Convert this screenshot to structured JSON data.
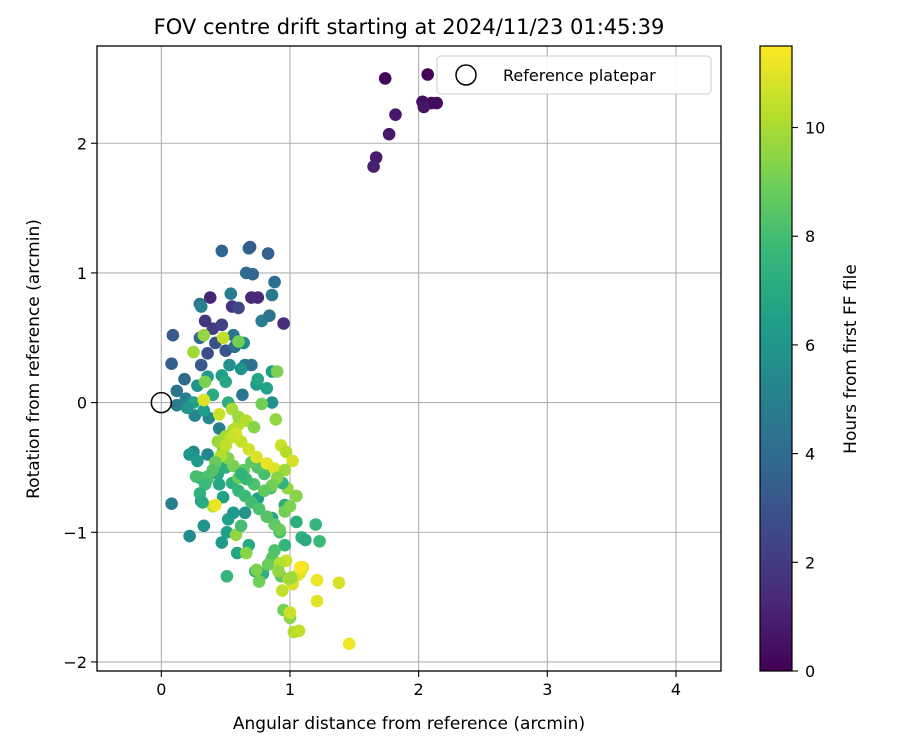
{
  "chart_data": {
    "type": "scatter",
    "title": "FOV centre drift starting at 2024/11/23 01:45:39",
    "xlabel": "Angular distance from reference (arcmin)",
    "ylabel": "Rotation from reference (arcmin)",
    "xlim": [
      -0.5,
      4.35
    ],
    "ylim": [
      -2.07,
      2.75
    ],
    "xticks": [
      0,
      1,
      2,
      3,
      4
    ],
    "yticks": [
      -2,
      -1,
      0,
      1,
      2
    ],
    "grid": true,
    "legend": {
      "position": "top-right",
      "entries": [
        "Reference platepar"
      ]
    },
    "reference_point": {
      "x": 0,
      "y": 0,
      "marker": "open-circle"
    },
    "colorbar": {
      "label": "Hours from first FF file",
      "colormap": "viridis",
      "range": [
        0,
        11.5
      ],
      "ticks": [
        0,
        2,
        4,
        6,
        8,
        10
      ]
    },
    "colormap_stops": [
      "#440154",
      "#482878",
      "#3e4989",
      "#31688e",
      "#26828e",
      "#1f9e89",
      "#35b779",
      "#6ece58",
      "#b5de2b",
      "#fde725"
    ],
    "series": [
      {
        "points": [
          [
            2.07,
            2.53,
            0.1
          ],
          [
            1.74,
            2.5,
            0.2
          ],
          [
            2.1,
            2.31,
            0.3
          ],
          [
            2.14,
            2.31,
            0.4
          ],
          [
            2.03,
            2.32,
            0.5
          ],
          [
            2.04,
            2.28,
            0.6
          ],
          [
            1.82,
            2.22,
            0.7
          ],
          [
            1.77,
            2.07,
            0.8
          ],
          [
            1.67,
            1.89,
            0.9
          ],
          [
            1.65,
            1.82,
            1.0
          ],
          [
            0.38,
            0.81,
            1.2
          ],
          [
            0.7,
            0.81,
            1.3
          ],
          [
            0.75,
            0.81,
            1.4
          ],
          [
            0.95,
            0.61,
            1.5
          ],
          [
            0.55,
            0.74,
            1.7
          ],
          [
            0.34,
            0.63,
            1.9
          ],
          [
            0.4,
            0.57,
            2.1
          ],
          [
            0.47,
            0.6,
            2.3
          ],
          [
            0.6,
            0.73,
            2.5
          ],
          [
            0.36,
            0.38,
            2.7
          ],
          [
            0.42,
            0.46,
            2.9
          ],
          [
            0.5,
            0.4,
            3.1
          ],
          [
            0.31,
            0.29,
            3.3
          ],
          [
            0.83,
            1.15,
            3.5
          ],
          [
            0.47,
            1.17,
            3.7
          ],
          [
            0.68,
            1.19,
            3.9
          ],
          [
            0.66,
            1.0,
            4.1
          ],
          [
            0.3,
            0.76,
            4.3
          ],
          [
            0.56,
            0.52,
            4.5
          ],
          [
            0.65,
            0.29,
            4.7
          ],
          [
            0.09,
            0.52,
            3.2
          ],
          [
            0.08,
            0.3,
            3.6
          ],
          [
            0.18,
            0.18,
            4.0
          ],
          [
            0.12,
            0.09,
            4.4
          ],
          [
            0.12,
            -0.02,
            4.8
          ],
          [
            0.26,
            -0.1,
            5.2
          ],
          [
            0.37,
            -0.12,
            5.4
          ],
          [
            0.45,
            -0.2,
            5.0
          ],
          [
            0.25,
            -0.38,
            5.6
          ],
          [
            0.36,
            -0.4,
            5.3
          ],
          [
            0.69,
            1.2,
            3.4
          ],
          [
            0.71,
            0.99,
            3.8
          ],
          [
            0.88,
            0.93,
            4.2
          ],
          [
            0.86,
            0.83,
            4.6
          ],
          [
            0.78,
            0.63,
            5.0
          ],
          [
            0.84,
            0.67,
            4.4
          ],
          [
            0.54,
            0.84,
            4.9
          ],
          [
            0.31,
            0.74,
            5.1
          ],
          [
            0.64,
            0.46,
            5.5
          ],
          [
            0.53,
            0.29,
            5.7
          ],
          [
            0.7,
            0.29,
            4.3
          ],
          [
            0.62,
            0.26,
            5.9
          ],
          [
            0.3,
            0.5,
            3.9
          ],
          [
            0.57,
            0.43,
            4.1
          ],
          [
            0.63,
            0.06,
            4.5
          ],
          [
            0.74,
            0.14,
            6.2
          ],
          [
            0.86,
            0.24,
            6.4
          ],
          [
            0.82,
            0.11,
            6.6
          ],
          [
            0.75,
            0.18,
            6.8
          ],
          [
            0.86,
            0.0,
            5.8
          ],
          [
            0.19,
            0.03,
            5.0
          ],
          [
            0.28,
            0.13,
            6.0
          ],
          [
            0.36,
            0.2,
            6.2
          ],
          [
            0.47,
            0.21,
            6.4
          ],
          [
            0.5,
            0.16,
            6.8
          ],
          [
            0.4,
            0.06,
            7.0
          ],
          [
            0.25,
            0.0,
            6.6
          ],
          [
            0.33,
            -0.06,
            6.4
          ],
          [
            0.2,
            -0.04,
            6.0
          ],
          [
            0.52,
            0.0,
            7.2
          ],
          [
            0.08,
            -0.78,
            5.0
          ],
          [
            0.22,
            -1.03,
            5.5
          ],
          [
            0.31,
            -0.76,
            5.7
          ],
          [
            0.33,
            -0.95,
            6.0
          ],
          [
            0.47,
            -1.08,
            6.2
          ],
          [
            0.51,
            -1.0,
            6.5
          ],
          [
            0.59,
            -1.16,
            6.7
          ],
          [
            0.68,
            -1.1,
            6.9
          ],
          [
            0.73,
            -1.3,
            7.1
          ],
          [
            0.79,
            -1.32,
            7.3
          ],
          [
            0.65,
            -0.85,
            6.0
          ],
          [
            0.75,
            -0.74,
            6.5
          ],
          [
            0.86,
            -0.89,
            6.8
          ],
          [
            0.96,
            -0.79,
            7.0
          ],
          [
            1.09,
            -1.04,
            7.4
          ],
          [
            1.05,
            -0.92,
            7.2
          ],
          [
            1.2,
            -0.94,
            7.6
          ],
          [
            1.23,
            -1.07,
            7.8
          ],
          [
            1.12,
            -1.06,
            7.0
          ],
          [
            0.96,
            -1.1,
            7.5
          ],
          [
            0.92,
            -1.0,
            8.0
          ],
          [
            0.88,
            -1.14,
            8.2
          ],
          [
            0.86,
            -1.2,
            8.4
          ],
          [
            0.93,
            -1.34,
            8.6
          ],
          [
            0.83,
            -1.25,
            8.8
          ],
          [
            0.76,
            -1.38,
            9.0
          ],
          [
            0.74,
            -1.29,
            9.2
          ],
          [
            0.66,
            -1.16,
            9.4
          ],
          [
            0.58,
            -1.02,
            9.6
          ],
          [
            0.51,
            -1.34,
            7.6
          ],
          [
            0.95,
            -1.6,
            9.0
          ],
          [
            1.0,
            -1.66,
            9.5
          ],
          [
            1.03,
            -1.77,
            10.2
          ],
          [
            1.07,
            -1.76,
            10.4
          ],
          [
            1.0,
            -1.62,
            10.6
          ],
          [
            0.94,
            -1.45,
            10.5
          ],
          [
            1.02,
            -1.4,
            10.8
          ],
          [
            1.06,
            -1.33,
            10.9
          ],
          [
            1.08,
            -1.31,
            11.0
          ],
          [
            1.1,
            -1.27,
            11.1
          ],
          [
            1.21,
            -1.37,
            11.2
          ],
          [
            1.21,
            -1.53,
            11.0
          ],
          [
            1.38,
            -1.39,
            10.8
          ],
          [
            1.46,
            -1.86,
            11.3
          ],
          [
            1.08,
            -1.27,
            11.4
          ],
          [
            0.97,
            -1.22,
            10.6
          ],
          [
            0.92,
            -1.24,
            10.2
          ],
          [
            0.99,
            -1.36,
            10.0
          ],
          [
            1.01,
            -1.35,
            9.8
          ],
          [
            0.91,
            -1.3,
            9.6
          ],
          [
            0.22,
            -0.4,
            6.0
          ],
          [
            0.28,
            -0.45,
            6.3
          ],
          [
            0.3,
            -0.58,
            6.6
          ],
          [
            0.27,
            -0.57,
            8.0
          ],
          [
            0.36,
            -0.59,
            8.3
          ],
          [
            0.4,
            -0.8,
            10.4
          ],
          [
            0.44,
            -0.55,
            7.0
          ],
          [
            0.5,
            -0.5,
            7.2
          ],
          [
            0.55,
            -0.62,
            7.4
          ],
          [
            0.6,
            -0.68,
            7.6
          ],
          [
            0.65,
            -0.72,
            7.8
          ],
          [
            0.7,
            -0.77,
            8.0
          ],
          [
            0.76,
            -0.82,
            8.2
          ],
          [
            0.82,
            -0.88,
            8.4
          ],
          [
            0.88,
            -0.94,
            8.6
          ],
          [
            0.92,
            -0.98,
            8.8
          ],
          [
            0.96,
            -0.84,
            9.0
          ],
          [
            1.0,
            -0.8,
            9.2
          ],
          [
            1.05,
            -0.72,
            9.4
          ],
          [
            0.98,
            -0.66,
            9.6
          ],
          [
            0.94,
            -0.62,
            7.5
          ],
          [
            0.9,
            -0.6,
            7.7
          ],
          [
            0.85,
            -0.66,
            7.9
          ],
          [
            0.8,
            -0.55,
            8.1
          ],
          [
            0.75,
            -0.5,
            8.3
          ],
          [
            0.7,
            -0.46,
            8.5
          ],
          [
            0.64,
            -0.52,
            8.7
          ],
          [
            0.6,
            -0.58,
            8.9
          ],
          [
            0.56,
            -0.49,
            9.1
          ],
          [
            0.52,
            -0.43,
            9.3
          ],
          [
            0.48,
            -0.36,
            9.5
          ],
          [
            0.44,
            -0.3,
            9.7
          ],
          [
            0.5,
            -0.26,
            9.9
          ],
          [
            0.56,
            -0.21,
            10.1
          ],
          [
            0.6,
            -0.17,
            10.3
          ],
          [
            0.62,
            -0.3,
            10.5
          ],
          [
            0.68,
            -0.36,
            10.7
          ],
          [
            0.74,
            -0.42,
            10.9
          ],
          [
            0.82,
            -0.47,
            11.1
          ],
          [
            0.88,
            -0.51,
            11.0
          ],
          [
            0.93,
            -0.33,
            10.6
          ],
          [
            0.97,
            -0.38,
            10.2
          ],
          [
            1.02,
            -0.45,
            10.8
          ],
          [
            0.96,
            -0.52,
            9.8
          ],
          [
            0.9,
            -0.58,
            9.4
          ],
          [
            0.86,
            -0.64,
            9.0
          ],
          [
            0.8,
            -0.68,
            8.6
          ],
          [
            0.72,
            -0.63,
            8.2
          ],
          [
            0.66,
            -0.59,
            7.8
          ],
          [
            0.62,
            -0.55,
            7.4
          ],
          [
            0.6,
            0.47,
            9.0
          ],
          [
            0.48,
            0.5,
            10.4
          ],
          [
            0.25,
            0.39,
            9.8
          ],
          [
            0.33,
            0.52,
            9.6
          ],
          [
            0.34,
            0.16,
            9.2
          ],
          [
            0.33,
            0.02,
            10.9
          ],
          [
            0.45,
            -0.09,
            10.6
          ],
          [
            0.55,
            -0.05,
            10.0
          ],
          [
            0.6,
            -0.11,
            9.8
          ],
          [
            0.66,
            -0.14,
            10.2
          ],
          [
            0.72,
            -0.19,
            9.4
          ],
          [
            0.78,
            -0.01,
            9.0
          ],
          [
            0.89,
            -0.13,
            9.6
          ],
          [
            0.9,
            0.24,
            9.2
          ],
          [
            0.58,
            -0.24,
            10.8
          ],
          [
            0.54,
            -0.27,
            10.6
          ],
          [
            0.5,
            -0.33,
            10.4
          ],
          [
            0.46,
            -0.41,
            10.2
          ],
          [
            0.42,
            -0.46,
            8.8
          ],
          [
            0.4,
            -0.52,
            8.4
          ],
          [
            0.36,
            -0.57,
            8.2
          ],
          [
            0.34,
            -0.63,
            7.8
          ],
          [
            0.3,
            -0.7,
            7.4
          ],
          [
            0.32,
            -0.77,
            7.0
          ],
          [
            0.45,
            -0.63,
            6.8
          ],
          [
            0.48,
            -0.73,
            6.6
          ],
          [
            0.42,
            -0.79,
            11.2
          ],
          [
            0.52,
            -0.9,
            6.4
          ],
          [
            0.56,
            -0.85,
            6.2
          ],
          [
            0.62,
            -0.95,
            8.0
          ]
        ]
      }
    ]
  }
}
